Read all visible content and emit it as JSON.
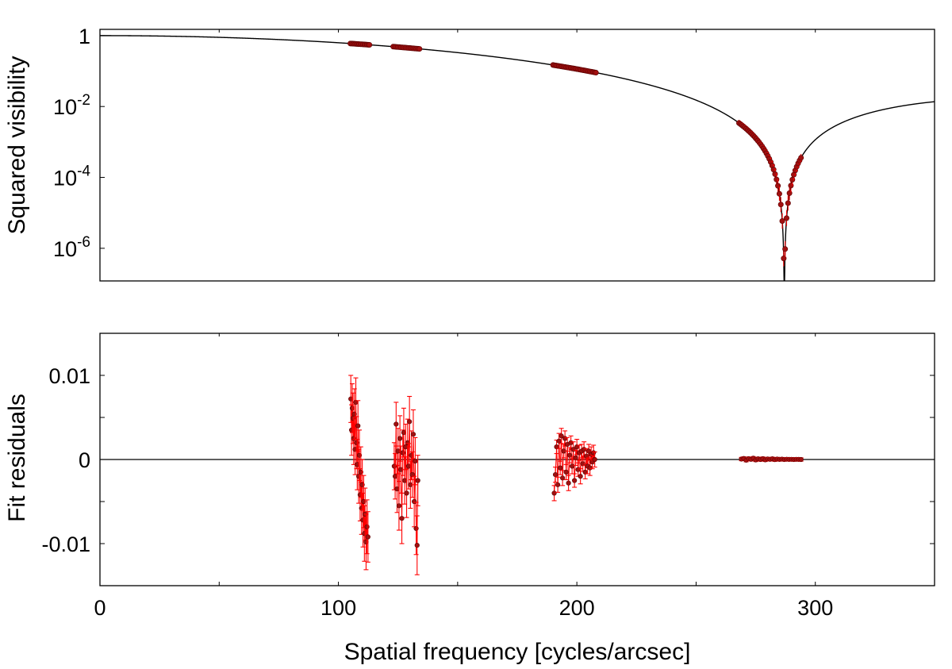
{
  "chart_data": [
    {
      "id": "visibility",
      "type": "scatter",
      "ylabel": "Squared visibility",
      "xlim": [
        0,
        350
      ],
      "ylim": [
        1.2e-07,
        1.5
      ],
      "yscale": "log",
      "grid": false,
      "x_ticks": [
        0,
        50,
        100,
        150,
        200,
        250,
        300,
        350
      ],
      "y_ticks": [
        {
          "value": 1,
          "mantissa": "1",
          "exponent": ""
        },
        {
          "value": 0.01,
          "mantissa": "10",
          "exponent": "-2"
        },
        {
          "value": 0.0001,
          "mantissa": "10",
          "exponent": "-4"
        },
        {
          "value": 1e-06,
          "mantissa": "10",
          "exponent": "-6"
        }
      ],
      "model_curve": {
        "type": "uniform-disk-squared",
        "first_null": 287,
        "x_range": [
          0,
          350
        ]
      },
      "clusters": [
        {
          "x": [
            105,
            113
          ],
          "n": 16
        },
        {
          "x": [
            123,
            134
          ],
          "n": 18
        },
        {
          "x": [
            190,
            208
          ],
          "n": 30
        },
        {
          "x": [
            268,
            294
          ],
          "n": 44
        }
      ],
      "points_on_model": true
    },
    {
      "id": "residuals",
      "type": "scatter",
      "xlabel": "Spatial frequency [cycles/arcsec]",
      "ylabel": "Fit residuals",
      "xlim": [
        0,
        350
      ],
      "ylim": [
        -0.015,
        0.015
      ],
      "grid": false,
      "x_ticks": [
        0,
        50,
        100,
        150,
        200,
        250,
        300,
        350
      ],
      "x_tick_labels": [
        {
          "value": 0,
          "label": "0"
        },
        {
          "value": 100,
          "label": "100"
        },
        {
          "value": 200,
          "label": "200"
        },
        {
          "value": 300,
          "label": "300"
        }
      ],
      "y_tick_labels": [
        {
          "value": 0.01,
          "label": "0.01"
        },
        {
          "value": 0,
          "label": "0"
        },
        {
          "value": -0.01,
          "label": "-0.01"
        }
      ],
      "y_minor_ticks": [
        0.01,
        0.005,
        0,
        -0.005,
        -0.01
      ],
      "zero_line": 0,
      "points": [
        {
          "x": 105.2,
          "y": 0.0072,
          "e": 0.0028
        },
        {
          "x": 105.5,
          "y": 0.0035,
          "e": 0.003
        },
        {
          "x": 105.8,
          "y": 0.0061,
          "e": 0.0029
        },
        {
          "x": 106.1,
          "y": 0.0049,
          "e": 0.003
        },
        {
          "x": 106.4,
          "y": 0.0025,
          "e": 0.0031
        },
        {
          "x": 106.7,
          "y": 0.0054,
          "e": 0.003
        },
        {
          "x": 107.0,
          "y": 0.0012,
          "e": 0.003
        },
        {
          "x": 107.3,
          "y": 0.0068,
          "e": 0.0029
        },
        {
          "x": 107.6,
          "y": 0.002,
          "e": 0.0031
        },
        {
          "x": 107.9,
          "y": -0.0006,
          "e": 0.003
        },
        {
          "x": 108.2,
          "y": 0.004,
          "e": 0.003
        },
        {
          "x": 108.5,
          "y": -0.002,
          "e": 0.0032
        },
        {
          "x": 108.8,
          "y": 0.0005,
          "e": 0.003
        },
        {
          "x": 109.1,
          "y": -0.0042,
          "e": 0.0031
        },
        {
          "x": 109.4,
          "y": -0.0015,
          "e": 0.003
        },
        {
          "x": 109.7,
          "y": -0.0058,
          "e": 0.0031
        },
        {
          "x": 110.0,
          "y": -0.003,
          "e": 0.003
        },
        {
          "x": 110.3,
          "y": -0.0072,
          "e": 0.0032
        },
        {
          "x": 110.6,
          "y": -0.005,
          "e": 0.0031
        },
        {
          "x": 110.9,
          "y": -0.0088,
          "e": 0.0033
        },
        {
          "x": 111.2,
          "y": -0.0065,
          "e": 0.0031
        },
        {
          "x": 111.6,
          "y": -0.0098,
          "e": 0.0033
        },
        {
          "x": 112.0,
          "y": -0.008,
          "e": 0.0032
        },
        {
          "x": 112.4,
          "y": -0.0092,
          "e": 0.003
        },
        {
          "x": 123.4,
          "y": -0.0008,
          "e": 0.0028
        },
        {
          "x": 123.8,
          "y": -0.002,
          "e": 0.0027
        },
        {
          "x": 124.2,
          "y": 0.0042,
          "e": 0.0026
        },
        {
          "x": 124.6,
          "y": -0.0035,
          "e": 0.0028
        },
        {
          "x": 125.0,
          "y": 0.001,
          "e": 0.0027
        },
        {
          "x": 125.4,
          "y": -0.0055,
          "e": 0.0029
        },
        {
          "x": 125.8,
          "y": 0.0025,
          "e": 0.0027
        },
        {
          "x": 126.2,
          "y": -0.0012,
          "e": 0.0028
        },
        {
          "x": 126.6,
          "y": -0.007,
          "e": 0.003
        },
        {
          "x": 127.0,
          "y": 0.0008,
          "e": 0.0027
        },
        {
          "x": 127.4,
          "y": 0.0032,
          "e": 0.0029
        },
        {
          "x": 127.8,
          "y": -0.0025,
          "e": 0.0028
        },
        {
          "x": 128.2,
          "y": 0.0015,
          "e": 0.0027
        },
        {
          "x": 128.6,
          "y": -0.004,
          "e": 0.0029
        },
        {
          "x": 129.0,
          "y": 0.002,
          "e": 0.0028
        },
        {
          "x": 129.4,
          "y": -0.0008,
          "e": 0.0027
        },
        {
          "x": 129.8,
          "y": 0.0045,
          "e": 0.003
        },
        {
          "x": 130.2,
          "y": -0.003,
          "e": 0.0028
        },
        {
          "x": 130.6,
          "y": 0.0005,
          "e": 0.0029
        },
        {
          "x": 131.0,
          "y": -0.0018,
          "e": 0.0027
        },
        {
          "x": 131.4,
          "y": 0.003,
          "e": 0.0029
        },
        {
          "x": 131.8,
          "y": -0.005,
          "e": 0.003
        },
        {
          "x": 132.2,
          "y": -0.0002,
          "e": 0.0028
        },
        {
          "x": 132.6,
          "y": -0.0082,
          "e": 0.0031
        },
        {
          "x": 133.0,
          "y": -0.0102,
          "e": 0.0035
        },
        {
          "x": 133.3,
          "y": -0.0025,
          "e": 0.003
        },
        {
          "x": 190.5,
          "y": -0.004,
          "e": 0.0009
        },
        {
          "x": 191.0,
          "y": -0.0018,
          "e": 0.0009
        },
        {
          "x": 191.5,
          "y": 0.0015,
          "e": 0.0008
        },
        {
          "x": 192.0,
          "y": -0.003,
          "e": 0.0009
        },
        {
          "x": 192.5,
          "y": 0.0022,
          "e": 0.0009
        },
        {
          "x": 193.0,
          "y": -0.001,
          "e": 0.0008
        },
        {
          "x": 193.5,
          "y": 0.0028,
          "e": 0.0009
        },
        {
          "x": 194.0,
          "y": -0.0022,
          "e": 0.0009
        },
        {
          "x": 194.5,
          "y": 0.001,
          "e": 0.0008
        },
        {
          "x": 195.0,
          "y": 0.0025,
          "e": 0.0009
        },
        {
          "x": 195.5,
          "y": -0.0015,
          "e": 0.0009
        },
        {
          "x": 196.0,
          "y": 0.0018,
          "e": 0.0008
        },
        {
          "x": 196.5,
          "y": -0.0028,
          "e": 0.0009
        },
        {
          "x": 197.0,
          "y": 0.0005,
          "e": 0.0009
        },
        {
          "x": 197.5,
          "y": 0.002,
          "e": 0.0008
        },
        {
          "x": 198.0,
          "y": -0.0008,
          "e": 0.0009
        },
        {
          "x": 198.5,
          "y": 0.0012,
          "e": 0.0009
        },
        {
          "x": 199.0,
          "y": -0.0025,
          "e": 0.0008
        },
        {
          "x": 199.5,
          "y": 0.0002,
          "e": 0.0009
        },
        {
          "x": 200.0,
          "y": 0.0015,
          "e": 0.0009
        },
        {
          "x": 200.5,
          "y": -0.0012,
          "e": 0.0008
        },
        {
          "x": 201.0,
          "y": 0.0008,
          "e": 0.0009
        },
        {
          "x": 201.5,
          "y": -0.002,
          "e": 0.0009
        },
        {
          "x": 202.0,
          "y": 0.001,
          "e": 0.0008
        },
        {
          "x": 202.5,
          "y": -0.0005,
          "e": 0.0009
        },
        {
          "x": 203.0,
          "y": 0.0012,
          "e": 0.0009
        },
        {
          "x": 203.5,
          "y": -0.0015,
          "e": 0.0008
        },
        {
          "x": 204.0,
          "y": 0.0004,
          "e": 0.0009
        },
        {
          "x": 204.5,
          "y": -0.0008,
          "e": 0.0009
        },
        {
          "x": 205.0,
          "y": 0.001,
          "e": 0.0008
        },
        {
          "x": 205.5,
          "y": -0.001,
          "e": 0.0009
        },
        {
          "x": 206.0,
          "y": 0.0006,
          "e": 0.0009
        },
        {
          "x": 206.5,
          "y": -0.0003,
          "e": 0.0008
        },
        {
          "x": 207.0,
          "y": 0.0008,
          "e": 0.0009
        },
        {
          "x": 207.5,
          "y": 0.0,
          "e": 0.0009
        },
        {
          "x": 269.0,
          "y": 5e-05,
          "e": 0.0002
        },
        {
          "x": 270.0,
          "y": 0.00012,
          "e": 0.0002
        },
        {
          "x": 271.0,
          "y": -8e-05,
          "e": 0.0002
        },
        {
          "x": 272.0,
          "y": 0.0001,
          "e": 0.0002
        },
        {
          "x": 273.0,
          "y": 2e-05,
          "e": 0.0002
        },
        {
          "x": 274.0,
          "y": 0.00015,
          "e": 0.0002
        },
        {
          "x": 275.0,
          "y": -5e-05,
          "e": 0.0002
        },
        {
          "x": 276.0,
          "y": 8e-05,
          "e": 0.0002
        },
        {
          "x": 277.0,
          "y": 0.0,
          "e": 0.0002
        },
        {
          "x": 278.0,
          "y": 0.0001,
          "e": 0.0002
        },
        {
          "x": 279.0,
          "y": -4e-05,
          "e": 0.0002
        },
        {
          "x": 280.0,
          "y": 6e-05,
          "e": 0.0002
        },
        {
          "x": 281.0,
          "y": 2e-05,
          "e": 0.0002
        },
        {
          "x": 282.0,
          "y": 8e-05,
          "e": 0.0002
        },
        {
          "x": 283.0,
          "y": -2e-05,
          "e": 0.0002
        },
        {
          "x": 284.0,
          "y": 5e-05,
          "e": 0.0002
        },
        {
          "x": 285.0,
          "y": 1e-05,
          "e": 0.0002
        },
        {
          "x": 286.0,
          "y": 4e-05,
          "e": 0.0002
        },
        {
          "x": 287.0,
          "y": 0.0,
          "e": 0.0002
        },
        {
          "x": 288.0,
          "y": 3e-05,
          "e": 0.0002
        },
        {
          "x": 289.0,
          "y": 1e-05,
          "e": 0.0002
        },
        {
          "x": 290.0,
          "y": 2e-05,
          "e": 0.0002
        },
        {
          "x": 291.0,
          "y": 0.0,
          "e": 0.0002
        },
        {
          "x": 292.0,
          "y": 2e-05,
          "e": 0.0002
        },
        {
          "x": 293.0,
          "y": 1e-05,
          "e": 0.0002
        },
        {
          "x": 294.0,
          "y": 0.0,
          "e": 0.0002
        }
      ]
    }
  ]
}
